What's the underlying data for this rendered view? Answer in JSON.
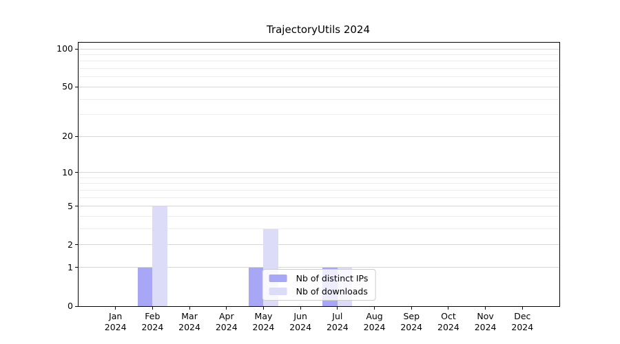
{
  "figure": {
    "title": "TrajectoryUtils 2024"
  },
  "chart_data": {
    "type": "bar",
    "title": "TrajectoryUtils 2024",
    "scale": "log1p",
    "categories": [
      "Jan",
      "Feb",
      "Mar",
      "Apr",
      "May",
      "Jun",
      "Jul",
      "Aug",
      "Sep",
      "Oct",
      "Nov",
      "Dec"
    ],
    "category_year": "2024",
    "series": [
      {
        "name": "Nb of distinct IPs",
        "color": "#a7a7f5",
        "values": [
          0,
          1,
          0,
          0,
          1,
          0,
          1,
          0,
          0,
          0,
          0,
          0
        ]
      },
      {
        "name": "Nb of downloads",
        "color": "#dcdcf9",
        "values": [
          0,
          5,
          0,
          0,
          3,
          0,
          1,
          0,
          0,
          0,
          0,
          0
        ]
      }
    ],
    "y_ticks": [
      0,
      1,
      2,
      5,
      10,
      20,
      50,
      100
    ],
    "y_minor_ticks": [
      3,
      4,
      6,
      7,
      8,
      9,
      30,
      40,
      60,
      70,
      80,
      90
    ],
    "ylim": [
      0,
      112
    ],
    "grid": true,
    "legend_position": "lower center",
    "colors": {
      "spine": "#000000",
      "grid_major": "#d6d6d6",
      "grid_minor": "#ededed",
      "background": "#ffffff"
    }
  }
}
